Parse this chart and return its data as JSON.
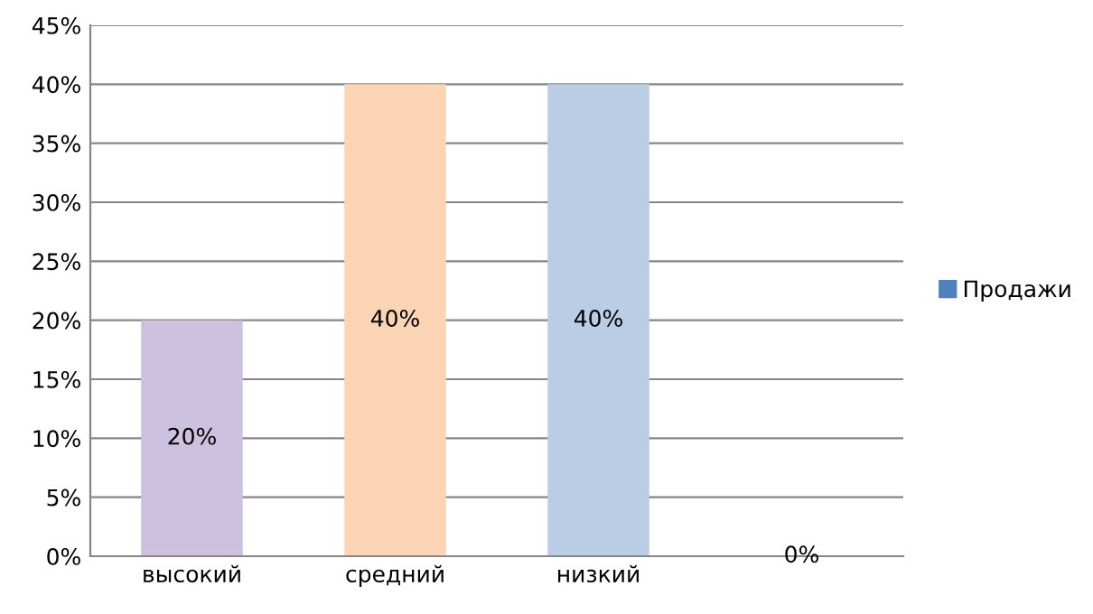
{
  "chart_data": {
    "type": "bar",
    "categories": [
      "высокий",
      "средний",
      "низкий",
      null
    ],
    "series": [
      {
        "name": "Продажи",
        "color": "#4f81bd",
        "colors": [
          "#ccc1de",
          "#fbd4b4",
          "#b9cde5",
          "#4f81bd"
        ],
        "values": [
          20,
          40,
          40,
          0
        ],
        "value_labels": [
          "20%",
          "40%",
          "40%",
          "0%"
        ]
      }
    ],
    "ylim": [
      0,
      45
    ],
    "yticks": [
      {
        "value": 0,
        "label": "0%"
      },
      {
        "value": 5,
        "label": "5%"
      },
      {
        "value": 10,
        "label": "10%"
      },
      {
        "value": 15,
        "label": "15%"
      },
      {
        "value": 20,
        "label": "20%"
      },
      {
        "value": 25,
        "label": "25%"
      },
      {
        "value": 30,
        "label": "30%"
      },
      {
        "value": 35,
        "label": "35%"
      },
      {
        "value": 40,
        "label": "40%"
      },
      {
        "value": 45,
        "label": "45%"
      }
    ],
    "grid": "y",
    "legend": "right"
  }
}
